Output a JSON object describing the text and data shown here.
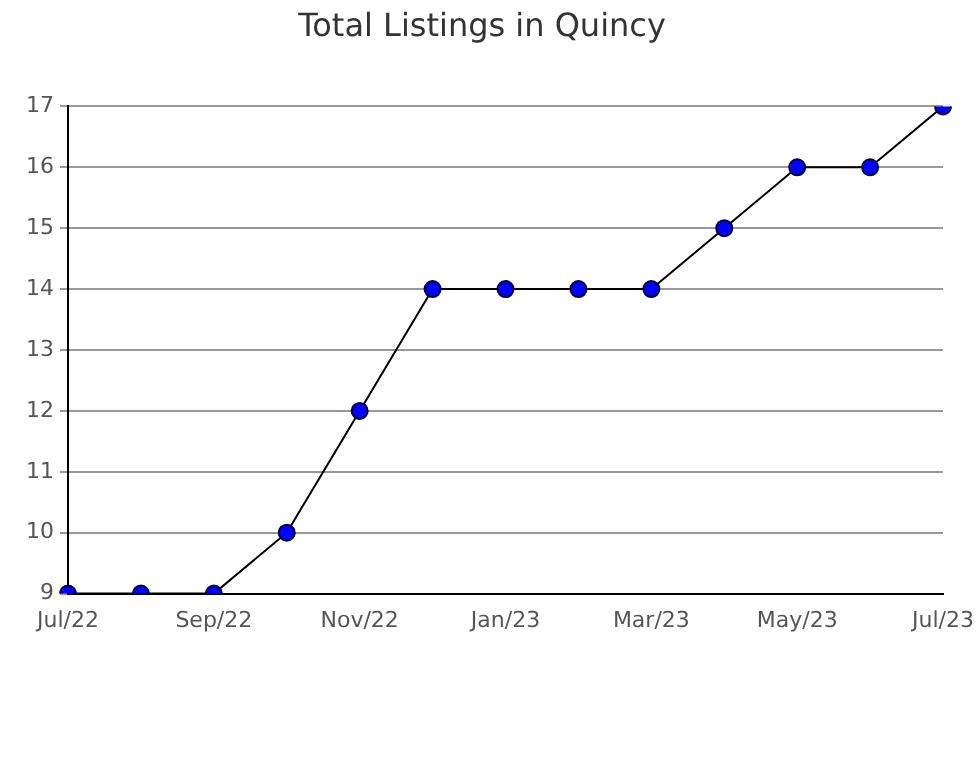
{
  "chart_data": {
    "type": "line",
    "title": "Total Listings in Quincy",
    "categories": [
      "Jul/22",
      null,
      "Sep/22",
      null,
      "Nov/22",
      null,
      "Jan/23",
      null,
      "Mar/23",
      null,
      "May/23",
      null,
      "Jul/23"
    ],
    "series": [
      {
        "color": "#0000ff",
        "values": [
          9,
          9,
          9,
          10,
          12,
          14,
          14,
          14,
          14,
          15,
          16,
          16,
          17
        ]
      }
    ],
    "ylim": [
      9,
      17
    ],
    "yticks": [
      9,
      10,
      11,
      12,
      13,
      14,
      15,
      16,
      17
    ],
    "grid": "y",
    "legend": false,
    "marker": "circle",
    "line_style": "solid"
  }
}
